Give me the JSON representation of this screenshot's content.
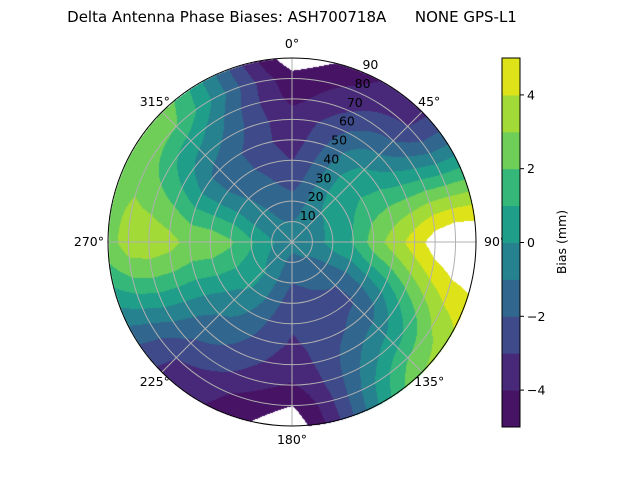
{
  "chart_data": {
    "type": "heatmap",
    "subtype": "polar-filled-contour",
    "title": "Delta Antenna Phase Biases: ASH700718A      NONE GPS-L1",
    "colorbar_label": "Bias (mm)",
    "colormap": "viridis",
    "levels": [
      -5,
      -4,
      -3,
      -2,
      -1,
      0,
      1,
      2,
      3,
      4,
      5
    ],
    "colorbar_ticks": [
      "−4",
      "−2",
      "0",
      "2",
      "4"
    ],
    "colorbar_tick_values": [
      -4,
      -2,
      0,
      2,
      4
    ],
    "band_colors": [
      "#471365",
      "#482979",
      "#3e4a89",
      "#31678e",
      "#26828e",
      "#1f9e89",
      "#35b779",
      "#6ece58",
      "#a2da37",
      "#dde318"
    ],
    "out_of_range_color": "#ffffff",
    "angular_ticks": [
      "0°",
      "45°",
      "90°",
      "135°",
      "180°",
      "225°",
      "270°",
      "315°"
    ],
    "angular_tick_values": [
      0,
      45,
      90,
      135,
      180,
      225,
      270,
      315
    ],
    "radial_ticks": [
      "10",
      "20",
      "30",
      "40",
      "50",
      "60",
      "70",
      "80",
      "90"
    ],
    "radial_tick_values": [
      10,
      20,
      30,
      40,
      50,
      60,
      70,
      80,
      90
    ],
    "theta_direction": "clockwise",
    "theta_zero": "north",
    "radial_range": [
      0,
      90
    ],
    "grid": true,
    "azimuths": [
      0,
      45,
      90,
      135,
      180,
      225,
      270,
      315
    ],
    "zeniths": [
      0,
      10,
      20,
      30,
      40,
      50,
      60,
      70,
      80,
      90
    ],
    "values": [
      [
        -0.6,
        -1.0,
        -1.6,
        -2.4,
        -3.0,
        -3.4,
        -3.6,
        -4.2,
        -4.6,
        -5.6
      ],
      [
        -0.6,
        -0.4,
        0.0,
        0.5,
        0.6,
        0.1,
        -0.9,
        -2.0,
        -3.0,
        -3.2
      ],
      [
        -0.6,
        -0.5,
        0.4,
        1.1,
        2.5,
        3.5,
        4.5,
        5.5,
        6.0,
        6.0
      ],
      [
        -0.6,
        -1.0,
        -1.5,
        -2.0,
        -2.1,
        -1.6,
        -0.5,
        0.6,
        2.0,
        3.0
      ],
      [
        -0.6,
        -1.4,
        -2.0,
        -2.5,
        -2.9,
        -3.1,
        -3.5,
        -4.1,
        -5.0,
        -5.6
      ],
      [
        -0.6,
        -0.4,
        0.1,
        0.1,
        -0.4,
        -1.0,
        -1.6,
        -2.2,
        -3.0,
        -3.2
      ],
      [
        -0.6,
        0.1,
        1.1,
        2.1,
        2.6,
        2.7,
        3.3,
        3.6,
        3.5,
        2.6
      ],
      [
        -0.6,
        -0.9,
        -0.9,
        -1.0,
        -1.4,
        -1.4,
        -0.5,
        0.6,
        2.0,
        2.6
      ]
    ]
  }
}
